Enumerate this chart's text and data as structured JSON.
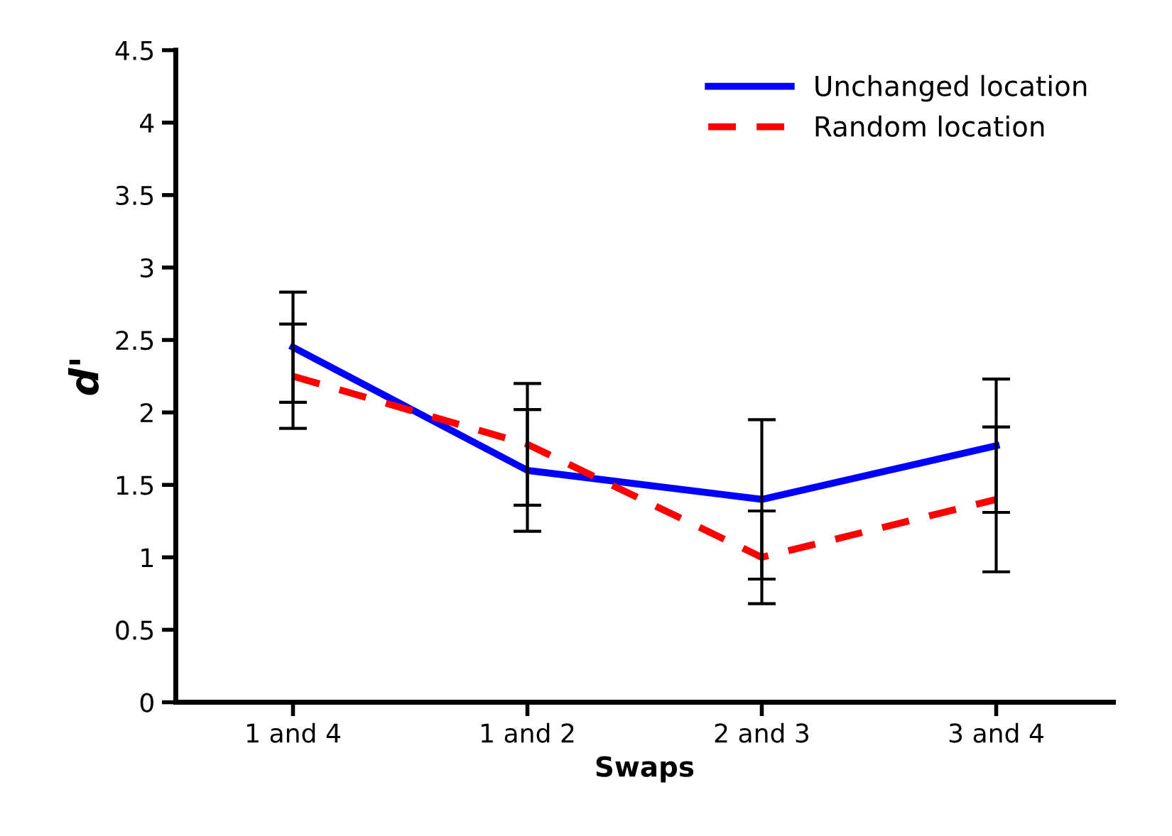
{
  "chart_data": {
    "type": "line",
    "xlabel": "Swaps",
    "ylabel": "d'",
    "categories": [
      "1 and 4",
      "1 and 2",
      "2 and 3",
      "3 and 4"
    ],
    "ylim": [
      0,
      4.5
    ],
    "yticks": [
      0,
      0.5,
      1,
      1.5,
      2,
      2.5,
      3,
      3.5,
      4,
      4.5
    ],
    "legend": "top right",
    "grid": false,
    "series": [
      {
        "name": "Unchanged location",
        "color": "#0000ff",
        "line_style": "solid",
        "values": [
          2.45,
          1.6,
          1.4,
          1.77
        ],
        "errors": [
          0.38,
          0.42,
          0.55,
          0.46
        ]
      },
      {
        "name": "Random location",
        "color": "#ff0000",
        "line_style": "dashed",
        "values": [
          2.25,
          1.78,
          1.0,
          1.4
        ],
        "errors": [
          0.36,
          0.42,
          0.32,
          0.5
        ]
      }
    ]
  }
}
